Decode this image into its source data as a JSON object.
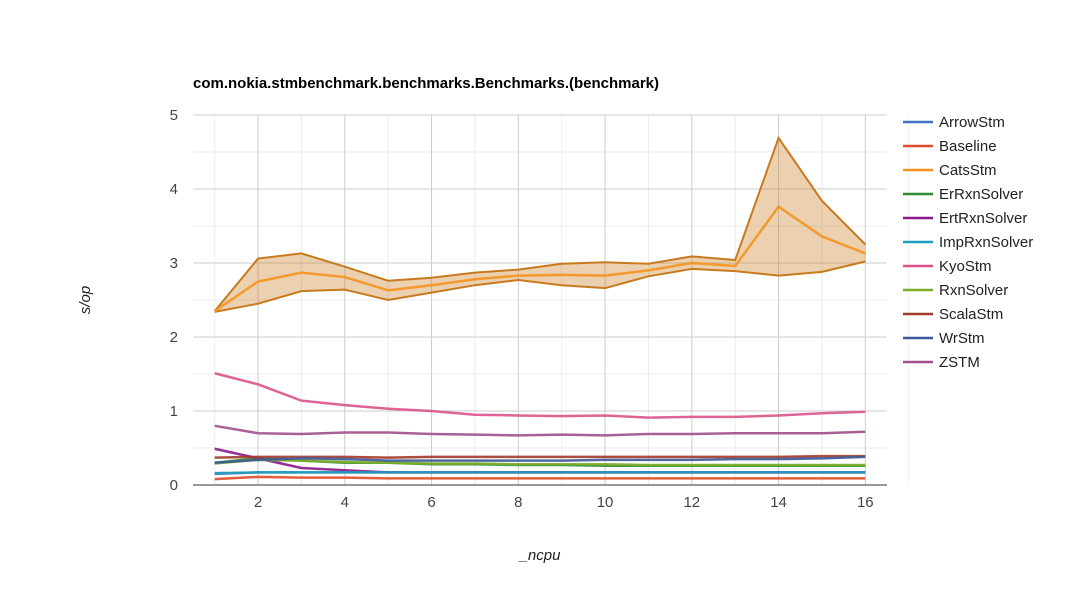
{
  "chart_data": {
    "type": "line",
    "title": "com.nokia.stmbenchmark.benchmarks.Benchmarks.(benchmark)",
    "xlabel": "_ncpu",
    "ylabel": "s/op",
    "xlim": [
      0.5,
      16.5
    ],
    "ylim": [
      0,
      5
    ],
    "x_ticks": [
      2,
      4,
      6,
      8,
      10,
      12,
      14,
      16
    ],
    "y_ticks": [
      0,
      1,
      2,
      3,
      4,
      5
    ],
    "grid": true,
    "legend_position": "right",
    "x": [
      1,
      2,
      3,
      4,
      5,
      6,
      7,
      8,
      9,
      10,
      11,
      12,
      13,
      14,
      15,
      16
    ],
    "series": [
      {
        "name": "ArrowStm",
        "color": "#4472c4",
        "values": [
          0.15,
          0.17,
          0.17,
          0.17,
          0.17,
          0.17,
          0.17,
          0.17,
          0.17,
          0.17,
          0.17,
          0.17,
          0.17,
          0.17,
          0.17,
          0.17
        ]
      },
      {
        "name": "Baseline",
        "color": "#e04b2a",
        "values": [
          0.08,
          0.11,
          0.1,
          0.1,
          0.09,
          0.09,
          0.09,
          0.09,
          0.09,
          0.09,
          0.09,
          0.09,
          0.09,
          0.09,
          0.09,
          0.09
        ]
      },
      {
        "name": "CatsStm",
        "color": "#f5921e",
        "band_color": "#c87a1e",
        "values": [
          2.35,
          2.75,
          2.87,
          2.81,
          2.63,
          2.7,
          2.78,
          2.83,
          2.84,
          2.83,
          2.9,
          3.0,
          2.96,
          3.76,
          3.36,
          3.13
        ],
        "upper": [
          2.35,
          3.06,
          3.13,
          2.95,
          2.76,
          2.8,
          2.87,
          2.91,
          2.99,
          3.01,
          2.99,
          3.09,
          3.04,
          4.69,
          3.84,
          3.25
        ],
        "lower": [
          2.34,
          2.45,
          2.62,
          2.64,
          2.5,
          2.6,
          2.7,
          2.77,
          2.7,
          2.66,
          2.82,
          2.92,
          2.89,
          2.83,
          2.88,
          3.02
        ]
      },
      {
        "name": "ErRxnSolver",
        "color": "#2e8b2e",
        "values": [
          0.3,
          0.36,
          0.33,
          0.3,
          0.3,
          0.28,
          0.28,
          0.27,
          0.27,
          0.26,
          0.26,
          0.26,
          0.26,
          0.26,
          0.26,
          0.26
        ]
      },
      {
        "name": "ErtRxnSolver",
        "color": "#8b1a8b",
        "values": [
          0.49,
          0.36,
          0.23,
          0.2,
          0.17,
          0.17,
          0.17,
          0.17,
          0.17,
          0.17,
          0.17,
          0.17,
          0.17,
          0.17,
          0.17,
          0.17
        ]
      },
      {
        "name": "ImpRxnSolver",
        "color": "#1f9fbf",
        "values": [
          0.16,
          0.17,
          0.17,
          0.17,
          0.17,
          0.17,
          0.17,
          0.17,
          0.17,
          0.17,
          0.17,
          0.17,
          0.17,
          0.17,
          0.17,
          0.17
        ]
      },
      {
        "name": "KyoStm",
        "color": "#d9538a",
        "values": [
          1.51,
          1.36,
          1.14,
          1.08,
          1.03,
          1.0,
          0.95,
          0.94,
          0.93,
          0.94,
          0.91,
          0.92,
          0.92,
          0.94,
          0.97,
          0.99
        ]
      },
      {
        "name": "RxnSolver",
        "color": "#7dad2a",
        "values": [
          0.29,
          0.34,
          0.33,
          0.31,
          0.3,
          0.29,
          0.29,
          0.28,
          0.28,
          0.28,
          0.27,
          0.27,
          0.27,
          0.27,
          0.27,
          0.27
        ]
      },
      {
        "name": "ScalaStm",
        "color": "#a33a2a",
        "values": [
          0.37,
          0.38,
          0.38,
          0.38,
          0.37,
          0.38,
          0.38,
          0.38,
          0.38,
          0.38,
          0.38,
          0.38,
          0.38,
          0.38,
          0.39,
          0.39
        ]
      },
      {
        "name": "WrStm",
        "color": "#3b5998",
        "values": [
          0.3,
          0.34,
          0.36,
          0.35,
          0.33,
          0.33,
          0.33,
          0.33,
          0.33,
          0.34,
          0.34,
          0.34,
          0.35,
          0.35,
          0.36,
          0.38
        ]
      },
      {
        "name": "ZSTM",
        "color": "#a0508a",
        "values": [
          0.8,
          0.7,
          0.69,
          0.71,
          0.71,
          0.69,
          0.68,
          0.67,
          0.68,
          0.67,
          0.69,
          0.69,
          0.7,
          0.7,
          0.7,
          0.72
        ]
      }
    ]
  }
}
